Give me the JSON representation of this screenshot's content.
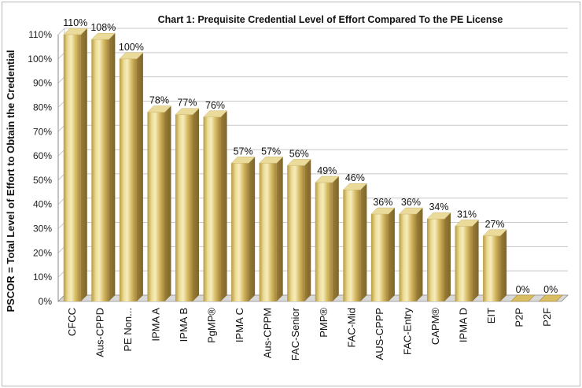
{
  "chart_data": {
    "type": "bar",
    "title": "Chart 1: Prequisite Credential Level of Effort Compared To the PE License",
    "ylabel": "PSCOR = Total Level of Effort to Obtain the Credential",
    "xlabel": "",
    "ylim": [
      0,
      110
    ],
    "yticks": [
      "0%",
      "10%",
      "20%",
      "30%",
      "40%",
      "50%",
      "60%",
      "70%",
      "80%",
      "90%",
      "100%",
      "110%"
    ],
    "grid": true,
    "categories": [
      "CFCC",
      "Aus-CPPD",
      "PE Non...",
      "IPMA A",
      "IPMA B",
      "PgMP®",
      "IPMA C",
      "Aus-CPPM",
      "FAC-Senior",
      "PMP®",
      "FAC-Mid",
      "AUS-CPPP",
      "FAC-Entry",
      "CAPM®",
      "IPMA D",
      "EIT",
      "P2P",
      "P2F"
    ],
    "values": [
      110,
      108,
      100,
      78,
      77,
      76,
      57,
      57,
      56,
      49,
      46,
      36,
      36,
      34,
      31,
      27,
      0,
      0
    ],
    "data_labels": [
      "110%",
      "108%",
      "100%",
      "78%",
      "77%",
      "76%",
      "57%",
      "57%",
      "56%",
      "49%",
      "46%",
      "36%",
      "36%",
      "34%",
      "31%",
      "27%",
      "0%",
      "0%"
    ],
    "colors": {
      "bar_light": "#f3e7a8",
      "bar_mid": "#d8bd63",
      "bar_dark": "#a8893a",
      "bar_top": "#eadb9a",
      "bar_side": "#8c7232",
      "grid": "#c8c8c8",
      "axis": "#8a8a8a",
      "floor": "#d9d9d9"
    }
  }
}
